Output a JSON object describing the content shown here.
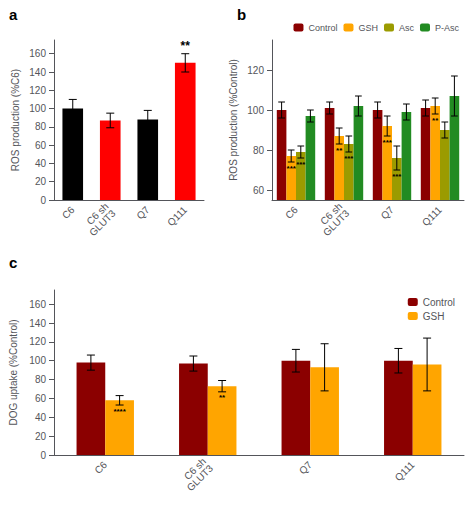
{
  "chart_data": [
    {
      "type": "bar",
      "title": "a",
      "categories": [
        "C6",
        "C6 sh\nGLUT3",
        "Q7",
        "Q111"
      ],
      "values": [
        100,
        87,
        88,
        150
      ],
      "errors": [
        10,
        8,
        10,
        10
      ],
      "colors": [
        "#000000",
        "#ff0000",
        "#000000",
        "#ff0000"
      ],
      "ylabel": "ROS production (%C6)",
      "ylim": [
        0,
        175
      ],
      "yticks": [
        0,
        20,
        40,
        60,
        80,
        100,
        120,
        140,
        160
      ],
      "grid": false,
      "annotations": [
        {
          "category": "Q111",
          "text": "**"
        }
      ]
    },
    {
      "type": "bar",
      "title": "b",
      "categories": [
        "C6",
        "C6 sh\nGLUT3",
        "Q7",
        "Q111"
      ],
      "series": [
        {
          "name": "Control",
          "color": "#8B0000",
          "values": [
            100,
            101,
            100,
            101
          ],
          "errors": [
            4,
            3,
            4,
            4
          ]
        },
        {
          "name": "GSH",
          "color": "#FFA500",
          "values": [
            77,
            87,
            92,
            102
          ],
          "errors": [
            3,
            4,
            5,
            4
          ]
        },
        {
          "name": "Asc",
          "color": "#9B9B00",
          "values": [
            79,
            83,
            76,
            90
          ],
          "errors": [
            3,
            4,
            6,
            4
          ]
        },
        {
          "name": "P-Asc",
          "color": "#228B22",
          "values": [
            97,
            102,
            99,
            107
          ],
          "errors": [
            3,
            5,
            4,
            10
          ]
        }
      ],
      "ylabel": "ROS production (%Control)",
      "ylim": [
        55,
        135
      ],
      "yticks": [
        60,
        80,
        100,
        120
      ],
      "grid": false,
      "legend": "upper right",
      "annotations": [
        {
          "category": "C6",
          "series": "GSH",
          "text": "***"
        },
        {
          "category": "C6",
          "series": "Asc",
          "text": "***"
        },
        {
          "category": "C6 sh\nGLUT3",
          "series": "GSH",
          "text": "**"
        },
        {
          "category": "C6 sh\nGLUT3",
          "series": "Asc",
          "text": "***"
        },
        {
          "category": "Q7",
          "series": "GSH",
          "text": "***"
        },
        {
          "category": "Q7",
          "series": "Asc",
          "text": "***"
        },
        {
          "category": "Q111",
          "series": "GSH",
          "text": "**"
        }
      ]
    },
    {
      "type": "bar",
      "title": "c",
      "categories": [
        "C6",
        "C6 sh\nGLUT3",
        "Q7",
        "Q111"
      ],
      "series": [
        {
          "name": "Control",
          "color": "#8B0000",
          "values": [
            98,
            97,
            100,
            100
          ],
          "errors": [
            8,
            8,
            12,
            13
          ]
        },
        {
          "name": "GSH",
          "color": "#FFA500",
          "values": [
            58,
            73,
            93,
            96
          ],
          "errors": [
            5,
            6,
            25,
            28
          ]
        }
      ],
      "ylabel": "DOG uptake (%Control)",
      "ylim": [
        0,
        175
      ],
      "yticks": [
        0,
        20,
        40,
        60,
        80,
        100,
        120,
        140,
        160
      ],
      "grid": false,
      "legend": "upper right",
      "annotations": [
        {
          "category": "C6",
          "series": "GSH",
          "text": "****"
        },
        {
          "category": "C6 sh\nGLUT3",
          "series": "GSH",
          "text": "**"
        }
      ]
    }
  ]
}
